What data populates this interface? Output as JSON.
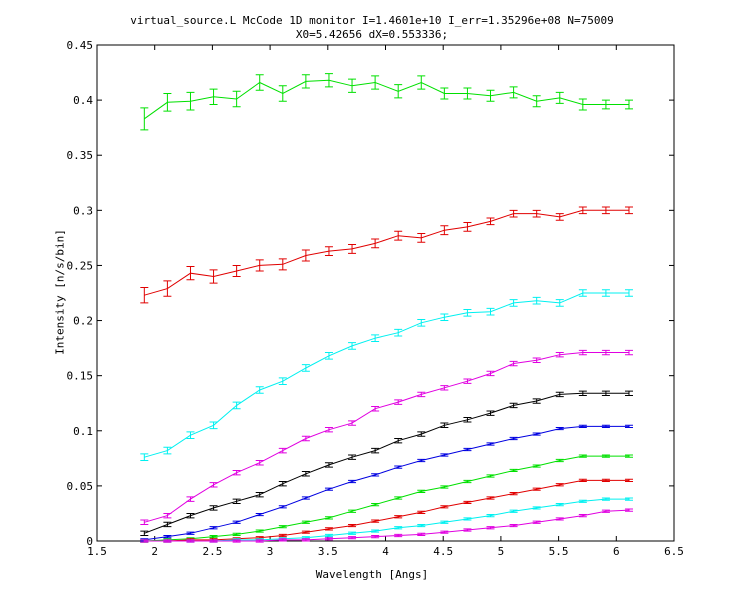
{
  "chart_data": {
    "type": "line",
    "title": "virtual_source.L McCode 1D monitor I=1.4601e+10 I_err=1.35296e+08 N=75009",
    "subtitle": "X0=5.42656 dX=0.553336;",
    "xlabel": "Wavelength [Angs]",
    "ylabel": "Intensity [n/s/bin]",
    "xlim": [
      1.5,
      6.5
    ],
    "ylim": [
      0,
      0.45
    ],
    "xticks": [
      "1.5",
      "2",
      "2.5",
      "3",
      "3.5",
      "4",
      "4.5",
      "5",
      "5.5",
      "6",
      "6.5"
    ],
    "yticks": [
      "0",
      "0.05",
      "0.1",
      "0.15",
      "0.2",
      "0.25",
      "0.3",
      "0.35",
      "0.4",
      "0.45"
    ],
    "grid": false,
    "x": [
      1.91,
      2.11,
      2.31,
      2.51,
      2.71,
      2.91,
      3.11,
      3.31,
      3.51,
      3.71,
      3.91,
      4.11,
      4.31,
      4.51,
      4.71,
      4.91,
      5.11,
      5.31,
      5.51,
      5.71,
      5.91,
      6.11
    ],
    "series": [
      {
        "color": "#00e000",
        "values": [
          0.383,
          0.398,
          0.399,
          0.403,
          0.401,
          0.416,
          0.406,
          0.417,
          0.418,
          0.413,
          0.416,
          0.408,
          0.416,
          0.406,
          0.406,
          0.404,
          0.407,
          0.399,
          0.402,
          0.396,
          0.396,
          0.396
        ],
        "errors": [
          0.01,
          0.008,
          0.008,
          0.007,
          0.007,
          0.007,
          0.007,
          0.006,
          0.006,
          0.006,
          0.006,
          0.006,
          0.006,
          0.005,
          0.005,
          0.005,
          0.005,
          0.005,
          0.005,
          0.005,
          0.004,
          0.004
        ]
      },
      {
        "color": "#e00000",
        "values": [
          0.223,
          0.229,
          0.243,
          0.24,
          0.245,
          0.25,
          0.251,
          0.259,
          0.263,
          0.265,
          0.27,
          0.277,
          0.275,
          0.282,
          0.285,
          0.29,
          0.297,
          0.297,
          0.294,
          0.3,
          0.3,
          0.3
        ],
        "errors": [
          0.007,
          0.007,
          0.006,
          0.006,
          0.005,
          0.005,
          0.005,
          0.005,
          0.004,
          0.004,
          0.004,
          0.004,
          0.004,
          0.004,
          0.004,
          0.003,
          0.003,
          0.003,
          0.003,
          0.003,
          0.003,
          0.003
        ]
      },
      {
        "color": "#00f0f0",
        "values": [
          0.076,
          0.082,
          0.096,
          0.105,
          0.123,
          0.137,
          0.145,
          0.157,
          0.168,
          0.177,
          0.184,
          0.189,
          0.198,
          0.203,
          0.207,
          0.208,
          0.216,
          0.218,
          0.216,
          0.225,
          0.225,
          0.225
        ],
        "errors": [
          0.003,
          0.003,
          0.003,
          0.003,
          0.003,
          0.003,
          0.003,
          0.003,
          0.003,
          0.003,
          0.003,
          0.003,
          0.003,
          0.003,
          0.003,
          0.003,
          0.003,
          0.003,
          0.003,
          0.003,
          0.003,
          0.003
        ]
      },
      {
        "color": "#e000e0",
        "values": [
          0.017,
          0.023,
          0.038,
          0.051,
          0.062,
          0.071,
          0.082,
          0.093,
          0.101,
          0.107,
          0.12,
          0.126,
          0.133,
          0.139,
          0.145,
          0.152,
          0.161,
          0.164,
          0.169,
          0.171,
          0.171,
          0.171
        ],
        "errors": [
          0.002,
          0.002,
          0.002,
          0.002,
          0.002,
          0.002,
          0.002,
          0.002,
          0.002,
          0.002,
          0.002,
          0.002,
          0.002,
          0.002,
          0.002,
          0.002,
          0.002,
          0.002,
          0.002,
          0.002,
          0.002,
          0.002
        ]
      },
      {
        "color": "#000000",
        "values": [
          0.007,
          0.015,
          0.023,
          0.03,
          0.036,
          0.042,
          0.052,
          0.061,
          0.069,
          0.076,
          0.082,
          0.091,
          0.097,
          0.105,
          0.11,
          0.116,
          0.123,
          0.127,
          0.133,
          0.134,
          0.134,
          0.134
        ],
        "errors": [
          0.002,
          0.002,
          0.002,
          0.002,
          0.002,
          0.002,
          0.002,
          0.002,
          0.002,
          0.002,
          0.002,
          0.002,
          0.002,
          0.002,
          0.002,
          0.002,
          0.002,
          0.002,
          0.002,
          0.002,
          0.002,
          0.002
        ]
      },
      {
        "color": "#0000e0",
        "values": [
          0.001,
          0.004,
          0.007,
          0.012,
          0.017,
          0.024,
          0.031,
          0.039,
          0.047,
          0.054,
          0.06,
          0.067,
          0.073,
          0.078,
          0.083,
          0.088,
          0.093,
          0.097,
          0.102,
          0.104,
          0.104,
          0.104
        ],
        "errors": [
          0.001,
          0.001,
          0.001,
          0.001,
          0.001,
          0.001,
          0.001,
          0.001,
          0.001,
          0.001,
          0.001,
          0.001,
          0.001,
          0.001,
          0.001,
          0.001,
          0.001,
          0.001,
          0.001,
          0.001,
          0.001,
          0.001
        ]
      },
      {
        "color": "#00e000",
        "values": [
          0.0,
          0.001,
          0.002,
          0.004,
          0.006,
          0.009,
          0.013,
          0.017,
          0.021,
          0.027,
          0.033,
          0.039,
          0.045,
          0.049,
          0.054,
          0.059,
          0.064,
          0.068,
          0.073,
          0.077,
          0.077,
          0.077
        ],
        "errors": [
          0.001,
          0.001,
          0.001,
          0.001,
          0.001,
          0.001,
          0.001,
          0.001,
          0.001,
          0.001,
          0.001,
          0.001,
          0.001,
          0.001,
          0.001,
          0.001,
          0.001,
          0.001,
          0.001,
          0.001,
          0.001,
          0.001
        ]
      },
      {
        "color": "#e00000",
        "values": [
          0.0,
          0.0,
          0.001,
          0.001,
          0.002,
          0.003,
          0.005,
          0.008,
          0.011,
          0.014,
          0.018,
          0.022,
          0.026,
          0.031,
          0.035,
          0.039,
          0.043,
          0.047,
          0.051,
          0.055,
          0.055,
          0.055
        ],
        "errors": [
          0.001,
          0.001,
          0.001,
          0.001,
          0.001,
          0.001,
          0.001,
          0.001,
          0.001,
          0.001,
          0.001,
          0.001,
          0.001,
          0.001,
          0.001,
          0.001,
          0.001,
          0.001,
          0.001,
          0.001,
          0.001,
          0.001
        ]
      },
      {
        "color": "#00f0f0",
        "values": [
          0.0,
          0.0,
          0.0,
          0.0,
          0.001,
          0.001,
          0.002,
          0.003,
          0.005,
          0.007,
          0.009,
          0.012,
          0.014,
          0.017,
          0.02,
          0.023,
          0.027,
          0.03,
          0.033,
          0.036,
          0.038,
          0.038
        ],
        "errors": [
          0.001,
          0.001,
          0.001,
          0.001,
          0.001,
          0.001,
          0.001,
          0.001,
          0.001,
          0.001,
          0.001,
          0.001,
          0.001,
          0.001,
          0.001,
          0.001,
          0.001,
          0.001,
          0.001,
          0.001,
          0.001,
          0.001
        ]
      },
      {
        "color": "#e000e0",
        "values": [
          0.0,
          0.0,
          0.0,
          0.0,
          0.0,
          0.0,
          0.001,
          0.001,
          0.002,
          0.003,
          0.004,
          0.005,
          0.006,
          0.008,
          0.01,
          0.012,
          0.014,
          0.017,
          0.02,
          0.023,
          0.027,
          0.028
        ],
        "errors": [
          0.001,
          0.001,
          0.001,
          0.001,
          0.001,
          0.001,
          0.001,
          0.001,
          0.001,
          0.001,
          0.001,
          0.001,
          0.001,
          0.001,
          0.001,
          0.001,
          0.001,
          0.001,
          0.001,
          0.001,
          0.001,
          0.001
        ]
      }
    ]
  }
}
